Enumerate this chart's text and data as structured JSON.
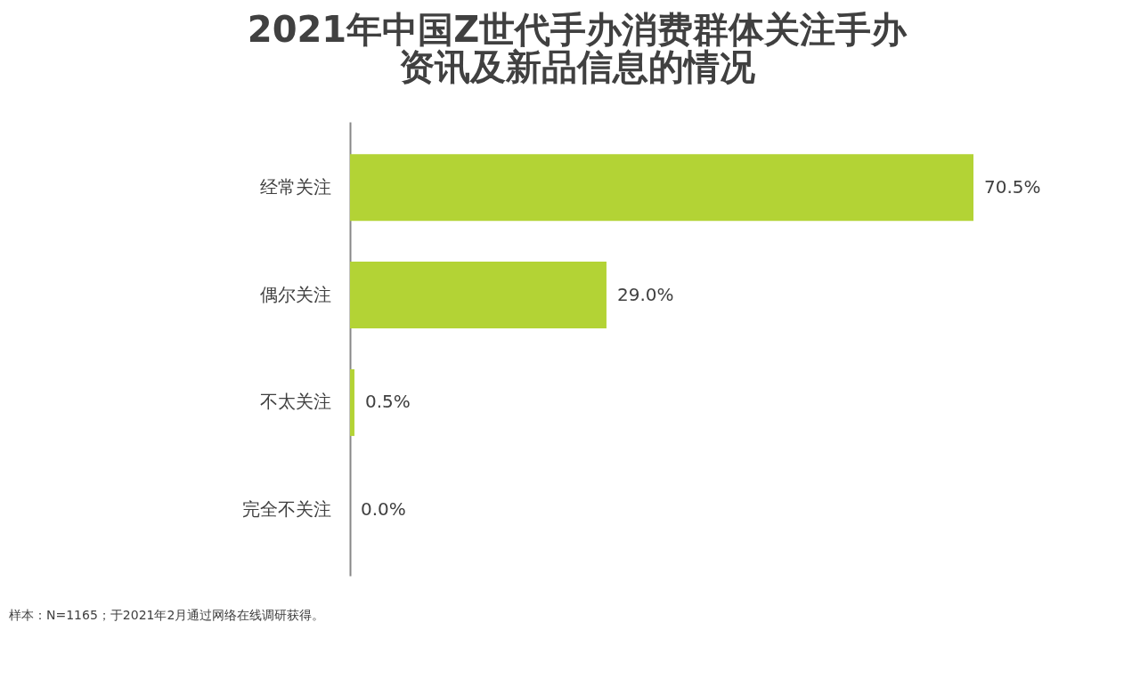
{
  "chart_data": {
    "type": "bar",
    "orientation": "horizontal",
    "title": "2021年中国Z世代手办消费群体关注手办资讯及新品信息的情况",
    "categories": [
      "经常关注",
      "偶尔关注",
      "不太关注",
      "完全不关注"
    ],
    "values": [
      70.5,
      29.0,
      0.5,
      0.0
    ],
    "value_labels": [
      "70.5%",
      "29.0%",
      "0.5%",
      "0.0%"
    ],
    "color": "#b3d335",
    "grid": false,
    "tick_labels": "y",
    "annotations": [
      "样本：N=1165；于2021年2月通过网络在线调研获得。"
    ]
  }
}
